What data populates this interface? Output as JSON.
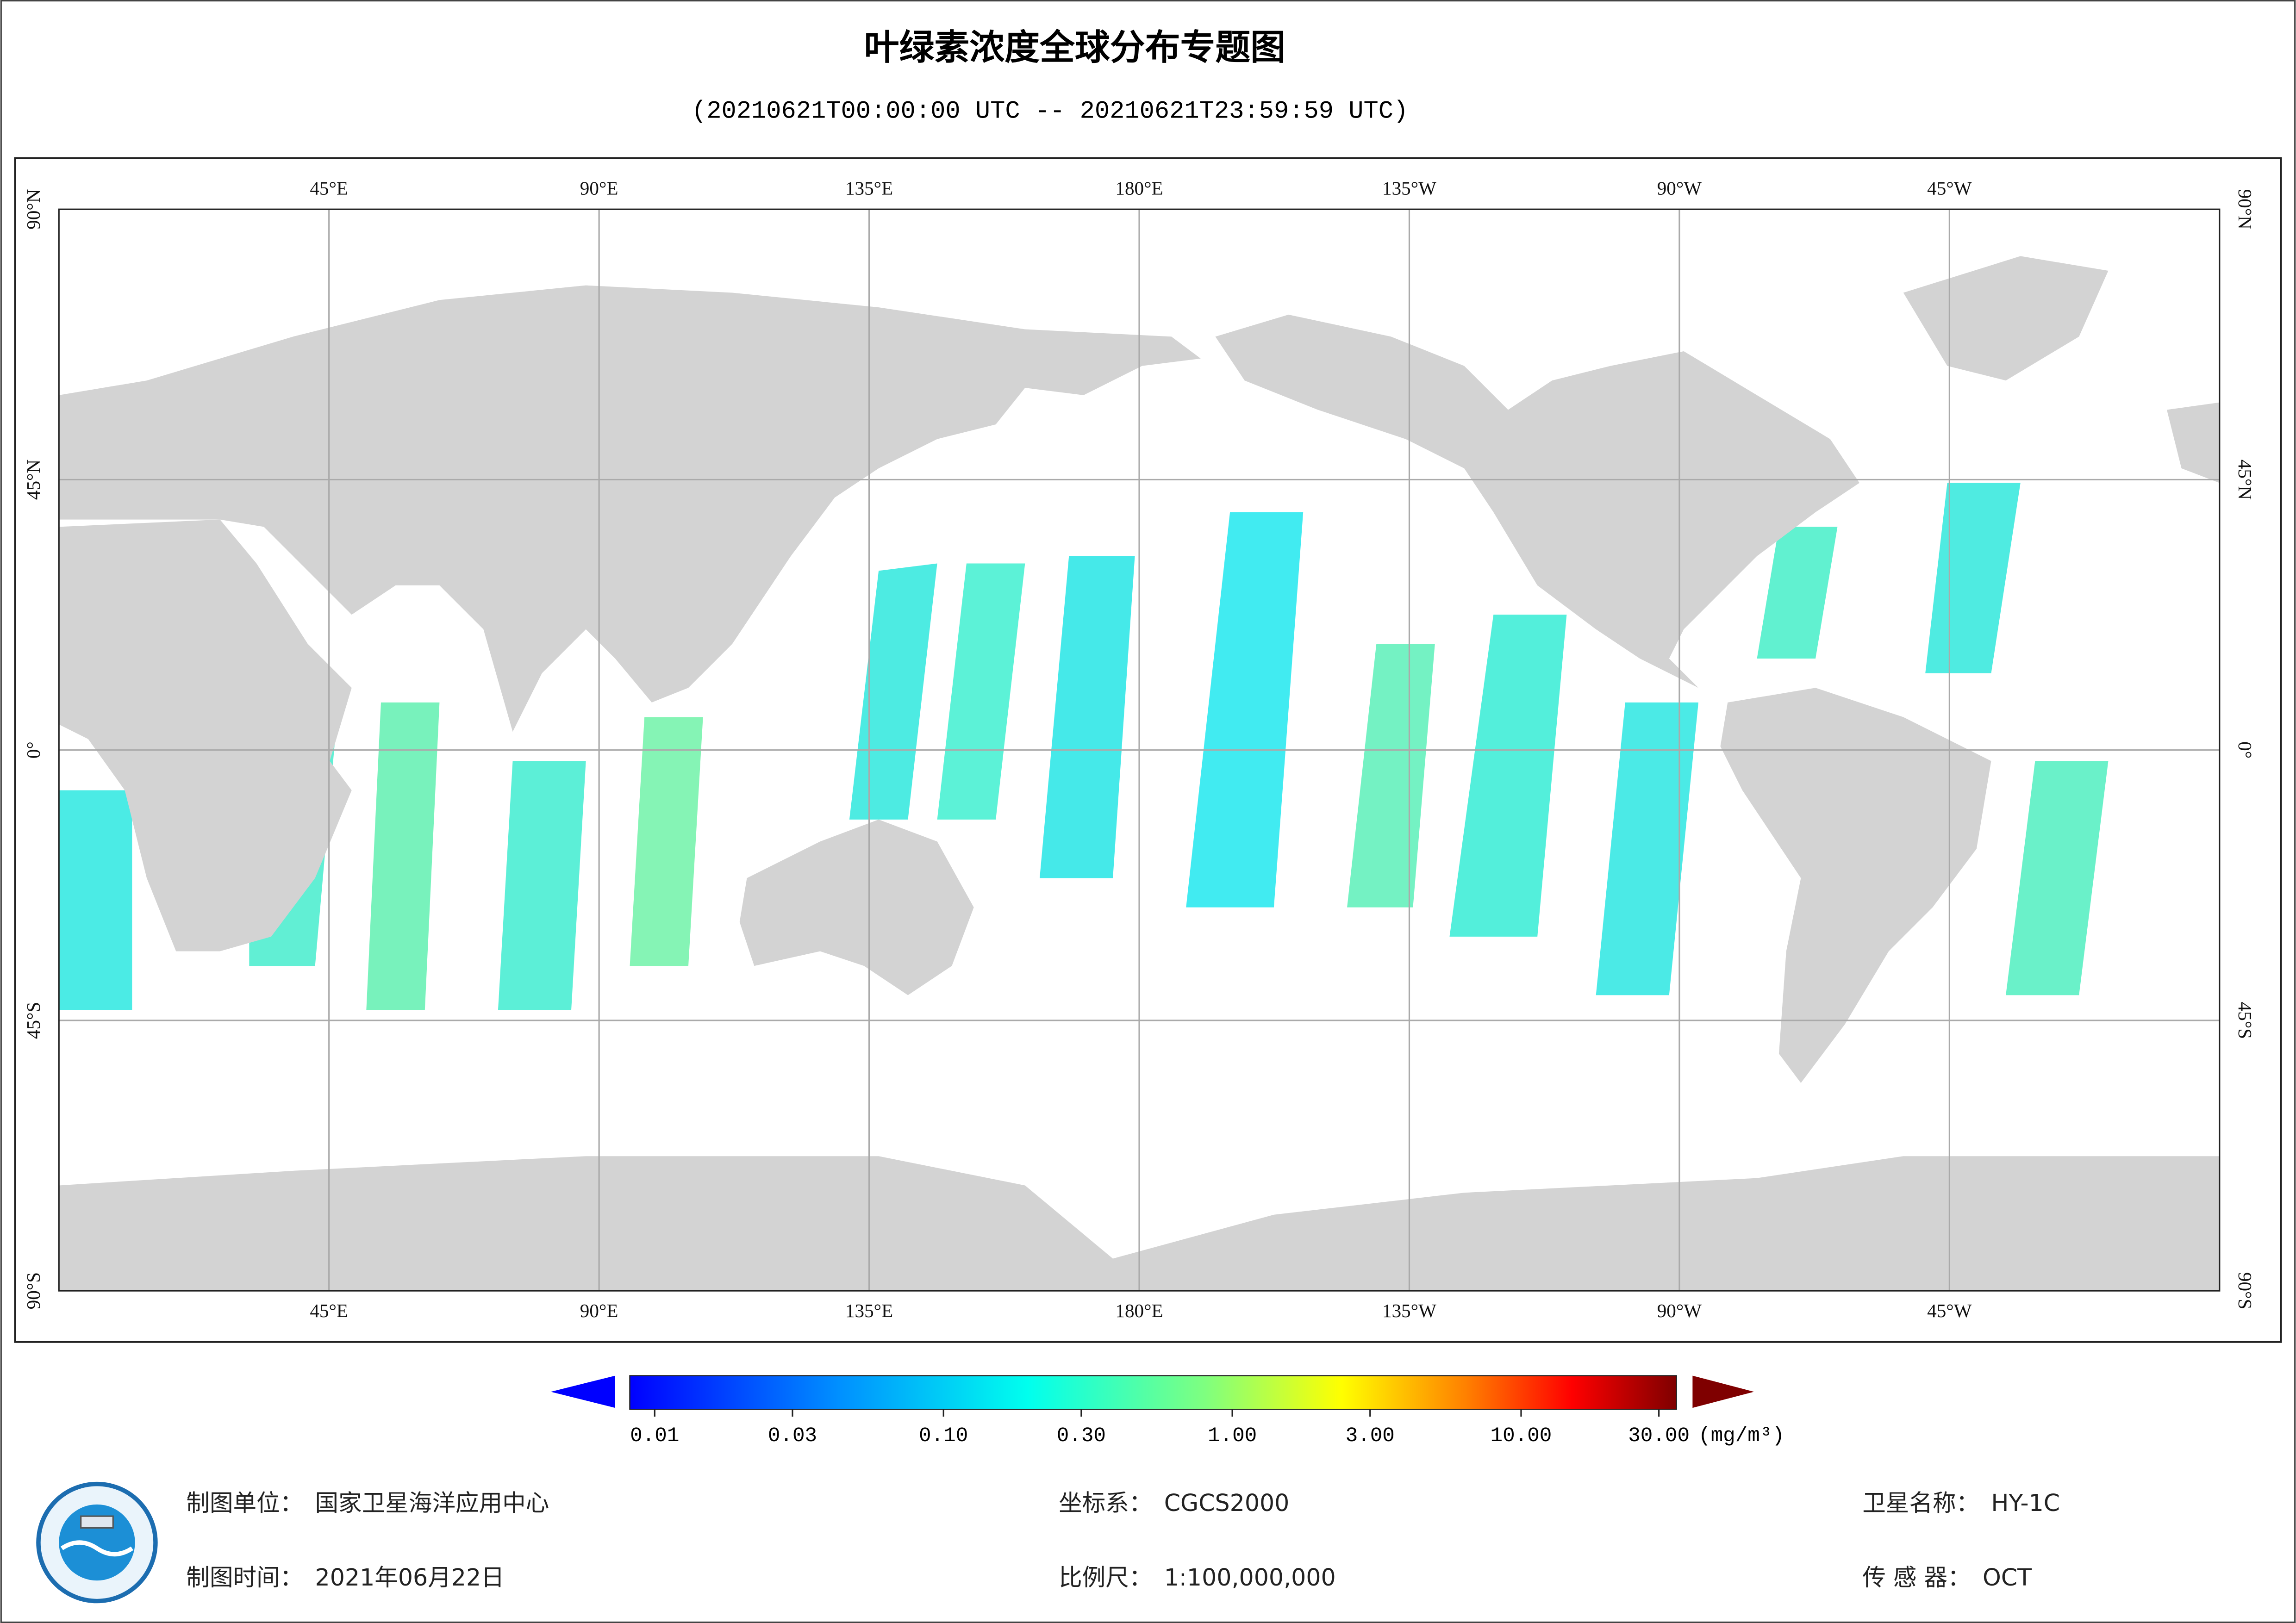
{
  "header": {
    "title": "叶绿素浓度全球分布专题图",
    "subtitle": "(20210621T00:00:00 UTC -- 20210621T23:59:59 UTC)"
  },
  "map": {
    "lonlim": [
      0,
      360
    ],
    "latlim": [
      -90,
      90
    ],
    "lon_ticks": [
      {
        "value": 45,
        "label": "45°E"
      },
      {
        "value": 90,
        "label": "90°E"
      },
      {
        "value": 135,
        "label": "135°E"
      },
      {
        "value": 180,
        "label": "180°E"
      },
      {
        "value": 225,
        "label": "135°W"
      },
      {
        "value": 270,
        "label": "90°W"
      },
      {
        "value": 315,
        "label": "45°W"
      }
    ],
    "lat_ticks": [
      {
        "value": 90,
        "label": "90°N"
      },
      {
        "value": 45,
        "label": "45°N"
      },
      {
        "value": 0,
        "label": "0°"
      },
      {
        "value": -45,
        "label": "45°S"
      },
      {
        "value": -90,
        "label": "90°S"
      }
    ],
    "grid": true
  },
  "colorbar": {
    "scale": "log",
    "lim": [
      0.01,
      30
    ],
    "ticks": [
      0.01,
      0.03,
      {
        "value": 0.1,
        "label": "0.10"
      },
      {
        "value": 0.3,
        "label": "0.30"
      },
      {
        "value": 1,
        "label": "1.00"
      },
      {
        "value": 3,
        "label": "3.00"
      },
      {
        "value": 10,
        "label": "10.00"
      },
      {
        "value": 30,
        "label": "30.00"
      }
    ],
    "unit": "(mg/m³)"
  },
  "footer": [
    {
      "label": "制图单位：",
      "value": "国家卫星海洋应用中心"
    },
    {
      "label": "制图时间：",
      "value": "2021年06月22日"
    },
    {
      "label": "坐标系：",
      "value": "CGCS2000"
    },
    {
      "label": "比例尺：",
      "value": "1:100,000,000"
    },
    {
      "label": "卫星名称：",
      "value": "HY-1C"
    },
    {
      "label": "传 感 器：",
      "value": "OCT"
    }
  ]
}
